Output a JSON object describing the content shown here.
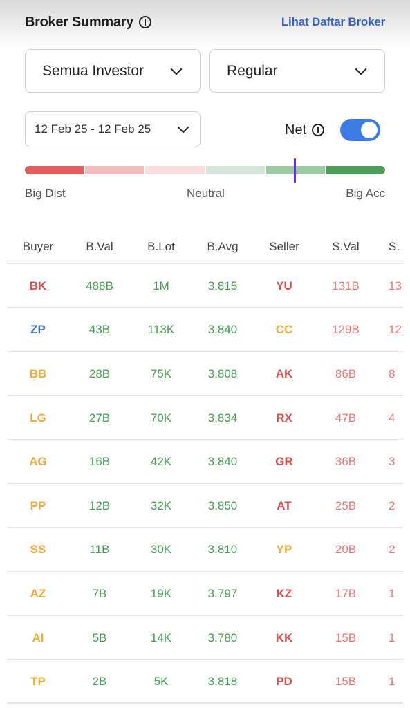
{
  "header": {
    "title": "Broker Summary",
    "link": "Lihat Daftar Broker"
  },
  "filters": {
    "investor": "Semua Investor",
    "market": "Regular",
    "date_range": "12 Feb 25 - 12 Feb 25"
  },
  "net": {
    "label": "Net",
    "enabled": true
  },
  "meter": {
    "labels": {
      "left": "Big Dist",
      "center": "Neutral",
      "right": "Big Acc"
    },
    "segment_colors": [
      "#e15f5f",
      "#f4bcbc",
      "#f9dede",
      "#d6e6d8",
      "#9ccaa2",
      "#4e9d58"
    ],
    "indicator_color": "#6a2ee8",
    "level": 0.75
  },
  "colors": {
    "green": "#4a9b57",
    "red": "#d94f4f",
    "blue": "#4270c2",
    "orange": "#edac3a",
    "pink": "#e87878"
  },
  "table": {
    "columns": [
      "Buyer",
      "B.Val",
      "B.Lot",
      "B.Avg",
      "Seller",
      "S.Val",
      "S."
    ],
    "rows": [
      {
        "buyer": "BK",
        "buyer_color": "red",
        "bval": "488B",
        "blot": "1M",
        "bavg": "3.815",
        "seller": "YU",
        "seller_color": "red",
        "sval": "131B",
        "slot": "13"
      },
      {
        "buyer": "ZP",
        "buyer_color": "blue",
        "bval": "43B",
        "blot": "113K",
        "bavg": "3.840",
        "seller": "CC",
        "seller_color": "orange",
        "sval": "129B",
        "slot": "12"
      },
      {
        "buyer": "BB",
        "buyer_color": "orange",
        "bval": "28B",
        "blot": "75K",
        "bavg": "3.808",
        "seller": "AK",
        "seller_color": "red",
        "sval": "86B",
        "slot": "8"
      },
      {
        "buyer": "LG",
        "buyer_color": "orange",
        "bval": "27B",
        "blot": "70K",
        "bavg": "3.834",
        "seller": "RX",
        "seller_color": "red",
        "sval": "47B",
        "slot": "4"
      },
      {
        "buyer": "AG",
        "buyer_color": "orange",
        "bval": "16B",
        "blot": "42K",
        "bavg": "3.840",
        "seller": "GR",
        "seller_color": "red",
        "sval": "36B",
        "slot": "3"
      },
      {
        "buyer": "PP",
        "buyer_color": "orange",
        "bval": "12B",
        "blot": "32K",
        "bavg": "3.850",
        "seller": "AT",
        "seller_color": "red",
        "sval": "25B",
        "slot": "2"
      },
      {
        "buyer": "SS",
        "buyer_color": "orange",
        "bval": "11B",
        "blot": "30K",
        "bavg": "3.810",
        "seller": "YP",
        "seller_color": "orange",
        "sval": "20B",
        "slot": "2"
      },
      {
        "buyer": "AZ",
        "buyer_color": "orange",
        "bval": "7B",
        "blot": "19K",
        "bavg": "3.797",
        "seller": "KZ",
        "seller_color": "red",
        "sval": "17B",
        "slot": "1"
      },
      {
        "buyer": "AI",
        "buyer_color": "orange",
        "bval": "5B",
        "blot": "14K",
        "bavg": "3.780",
        "seller": "KK",
        "seller_color": "red",
        "sval": "15B",
        "slot": "1"
      },
      {
        "buyer": "TP",
        "buyer_color": "orange",
        "bval": "2B",
        "blot": "5K",
        "bavg": "3.818",
        "seller": "PD",
        "seller_color": "red",
        "sval": "15B",
        "slot": "1"
      }
    ]
  }
}
